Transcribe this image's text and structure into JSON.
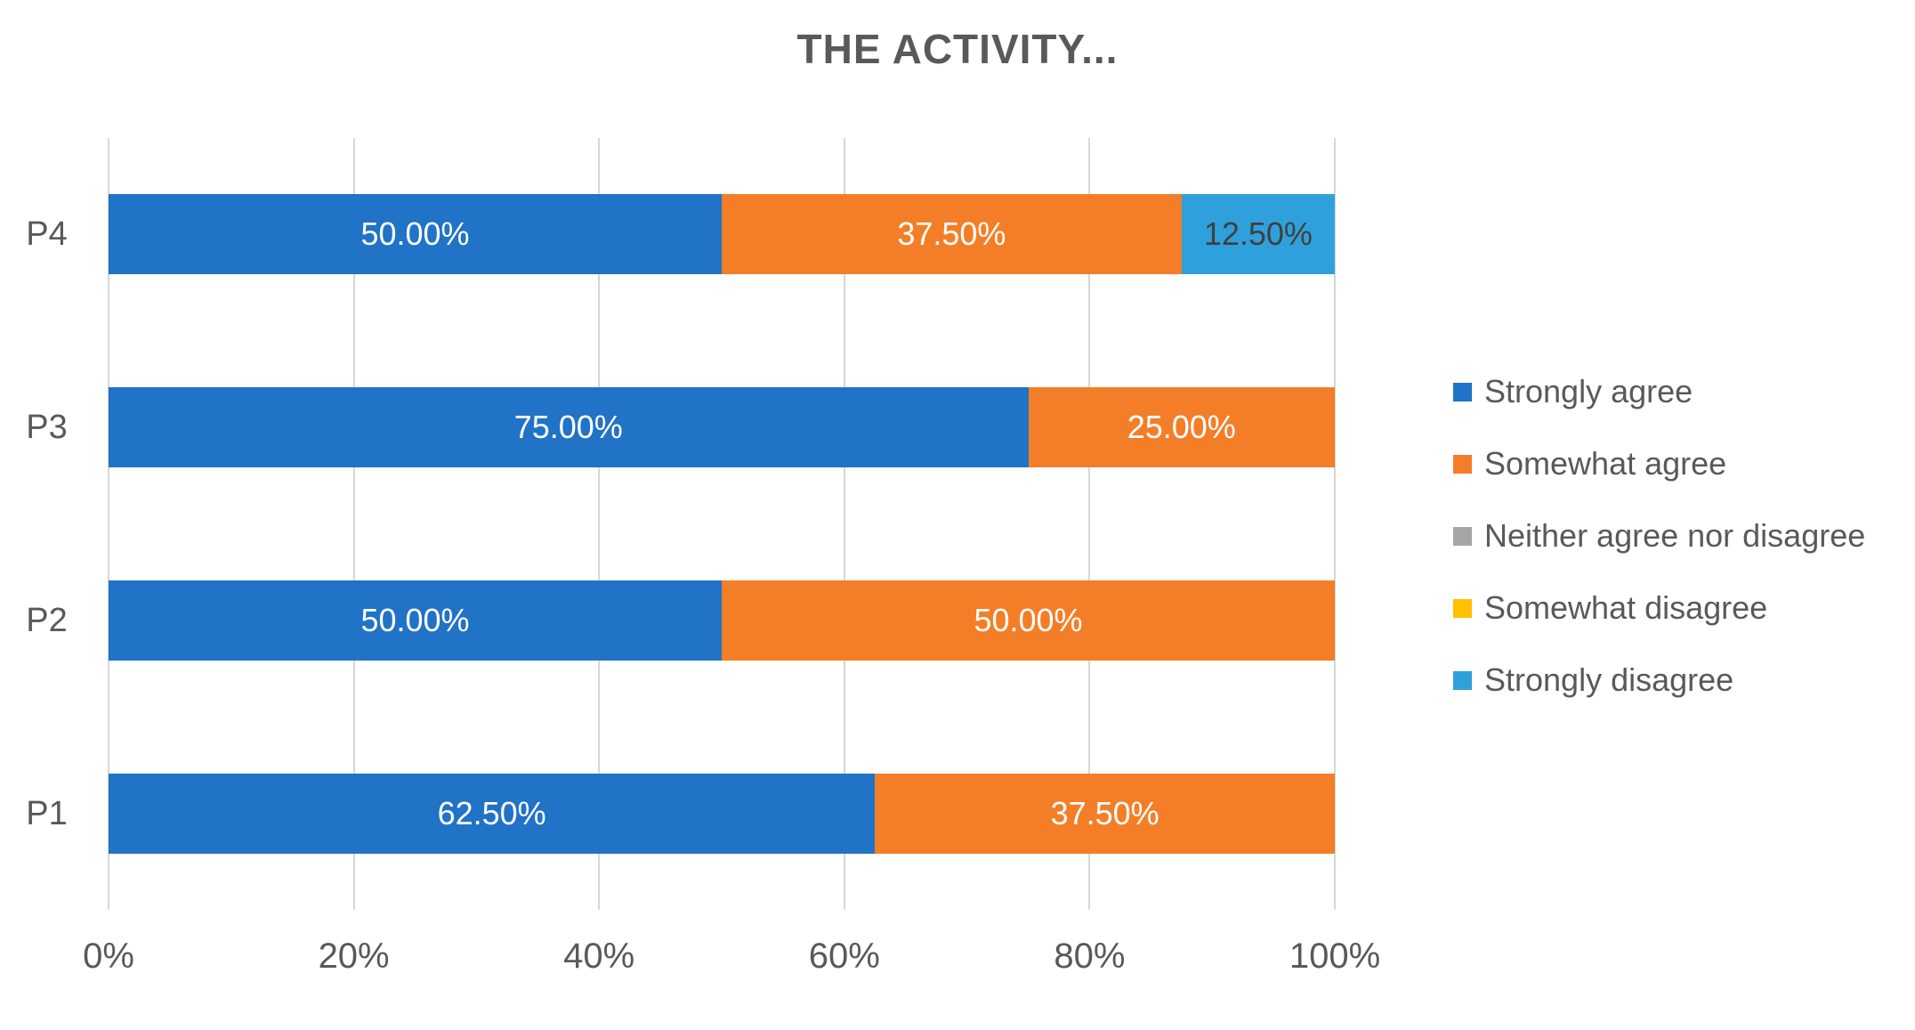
{
  "chart": {
    "title": "THE ACTIVITY..."
  },
  "chart_data": {
    "type": "bar",
    "orientation": "horizontal-stacked",
    "title": "THE ACTIVITY...",
    "xlabel": "",
    "ylabel": "",
    "xlim": [
      0,
      100
    ],
    "grid": true,
    "legend_position": "right",
    "categories": [
      "P1",
      "P2",
      "P3",
      "P4"
    ],
    "row_order_top_to_bottom": [
      "P4",
      "P3",
      "P2",
      "P1"
    ],
    "x_ticks": [
      {
        "label": "0%",
        "value": 0
      },
      {
        "label": "20%",
        "value": 20
      },
      {
        "label": "40%",
        "value": 40
      },
      {
        "label": "60%",
        "value": 60
      },
      {
        "label": "80%",
        "value": 80
      },
      {
        "label": "100%",
        "value": 100
      }
    ],
    "series": [
      {
        "name": "Strongly agree",
        "color": "#2073c6",
        "values": [
          62.5,
          50,
          75,
          50
        ],
        "label_text_color": "#ffffff"
      },
      {
        "name": "Somewhat agree",
        "color": "#f47e27",
        "values": [
          37.5,
          50,
          25,
          37.5
        ],
        "label_text_color": "#ffffff"
      },
      {
        "name": "Neither agree nor disagree",
        "color": "#a5a5a5",
        "values": [
          0,
          0,
          0,
          0
        ],
        "label_text_color": "#ffffff"
      },
      {
        "name": "Somewhat disagree",
        "color": "#ffc000",
        "values": [
          0,
          0,
          0,
          0
        ],
        "label_text_color": "#ffffff"
      },
      {
        "name": "Strongly disagree",
        "color": "#2ea1dc",
        "values": [
          0,
          0,
          0,
          12.5
        ],
        "label_text_color": "#404040"
      }
    ],
    "data_label_format": "0.00%",
    "colors": {
      "title_text": "#595959",
      "axis_text": "#595959",
      "gridline": "#d6d6d6",
      "background": "#ffffff"
    }
  }
}
